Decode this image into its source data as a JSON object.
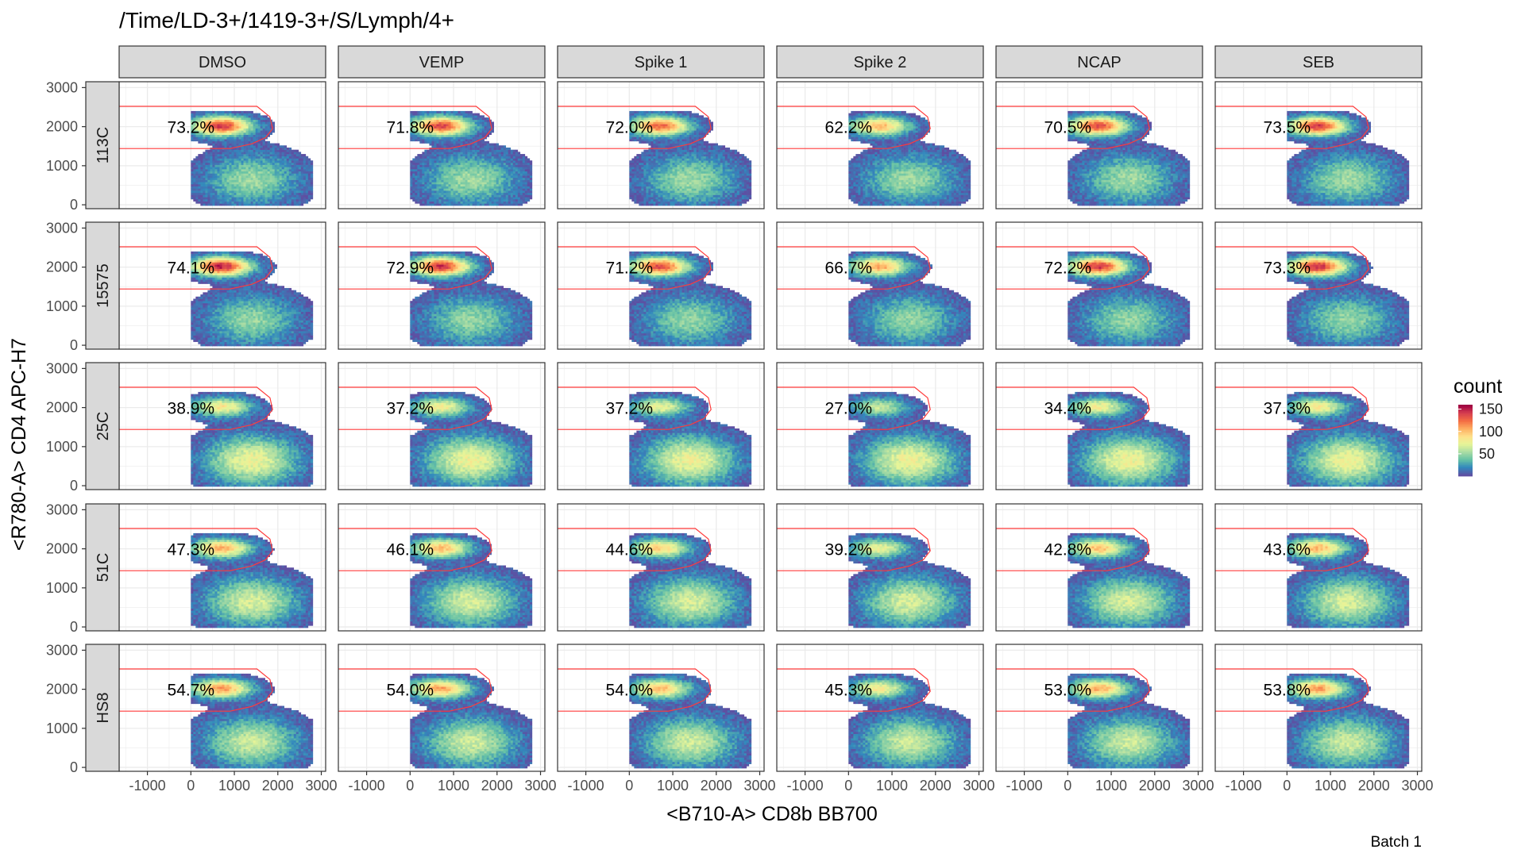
{
  "chart_data": {
    "type": "heatmap",
    "title": "/Time/LD-3+/1419-3+/S/Lymph/4+",
    "xlabel": "<B710-A> CD8b BB700",
    "ylabel": "<R780-A> CD4 APC-H7",
    "caption": "Batch 1",
    "columns": [
      "DMSO",
      "VEMP",
      "Spike 1",
      "Spike 2",
      "NCAP",
      "SEB"
    ],
    "rows": [
      "113C",
      "15575",
      "25C",
      "51C",
      "HS8"
    ],
    "x_ticks": [
      -1000,
      0,
      1000,
      2000,
      3000
    ],
    "y_ticks": [
      0,
      1000,
      2000,
      3000
    ],
    "x_tick_labels": [
      "-1000",
      "0",
      "1000",
      "2000",
      "3000"
    ],
    "y_tick_labels": [
      "0",
      "1000",
      "2000",
      "3000"
    ],
    "xlim": [
      -1650,
      3100
    ],
    "ylim": [
      -100,
      3150
    ],
    "gate_percentages": [
      [
        "73.2%",
        "71.8%",
        "72.0%",
        "62.2%",
        "70.5%",
        "73.5%"
      ],
      [
        "74.1%",
        "72.9%",
        "71.2%",
        "66.7%",
        "72.2%",
        "73.3%"
      ],
      [
        "38.9%",
        "37.2%",
        "37.2%",
        "27.0%",
        "34.4%",
        "37.3%"
      ],
      [
        "47.3%",
        "46.1%",
        "44.6%",
        "39.2%",
        "42.8%",
        "43.6%"
      ],
      [
        "54.7%",
        "54.0%",
        "54.0%",
        "45.3%",
        "53.0%",
        "53.8%"
      ]
    ],
    "gate_polygon": [
      [
        -1650,
        2520
      ],
      [
        1520,
        2520
      ],
      [
        1820,
        2250
      ],
      [
        1880,
        1950
      ],
      [
        1720,
        1720
      ],
      [
        1400,
        1560
      ],
      [
        900,
        1440
      ],
      [
        -1650,
        1440
      ]
    ],
    "gate_color": "#ff3b3b",
    "gate_label_position": [
      0,
      1980
    ],
    "populations_note": "CD4+ cluster near x 0..1500, y 1700..2300; CD8 low cluster near x 0..2800, y 0..1500",
    "legend": {
      "title": "count",
      "labels": [
        "150",
        "100",
        "50"
      ],
      "values": [
        150,
        100,
        50
      ],
      "max": 160,
      "colormap": [
        "#5e4fa2",
        "#3288bd",
        "#66c2a5",
        "#abdda4",
        "#e6f598",
        "#fee08b",
        "#fdae61",
        "#f46d43",
        "#d53e4f",
        "#9e0142"
      ]
    },
    "panel_background": "#ffffff",
    "grid": true,
    "strip_fill": "#d9d9d9"
  }
}
